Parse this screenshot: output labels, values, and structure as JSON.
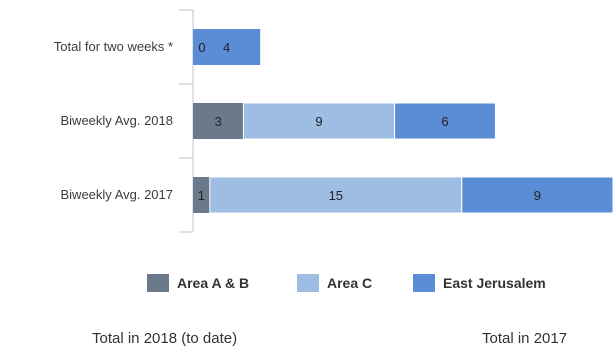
{
  "chart_data": {
    "type": "bar",
    "orientation": "horizontal",
    "stacked": true,
    "categories": [
      "Total for two weeks *",
      "Biweekly Avg. 2018",
      "Biweekly Avg. 2017"
    ],
    "series": [
      {
        "name": "Area A & B",
        "values": [
          0,
          3,
          1
        ],
        "color": "#6b7a8a"
      },
      {
        "name": "Area C",
        "values": [
          0,
          9,
          15
        ],
        "color": "#9dbde2"
      },
      {
        "name": "East Jerusalem",
        "values": [
          4,
          6,
          9
        ],
        "color": "#5a8dd6"
      }
    ],
    "data_labels": [
      [
        "0",
        "",
        "4"
      ],
      [
        "3",
        "9",
        "6"
      ],
      [
        "1",
        "15",
        "9"
      ]
    ],
    "xlim": [
      0,
      25
    ],
    "grid": false,
    "legend_position": "bottom"
  },
  "footer": {
    "left": "Total in 2018 (to date)",
    "right": "Total in 2017"
  }
}
